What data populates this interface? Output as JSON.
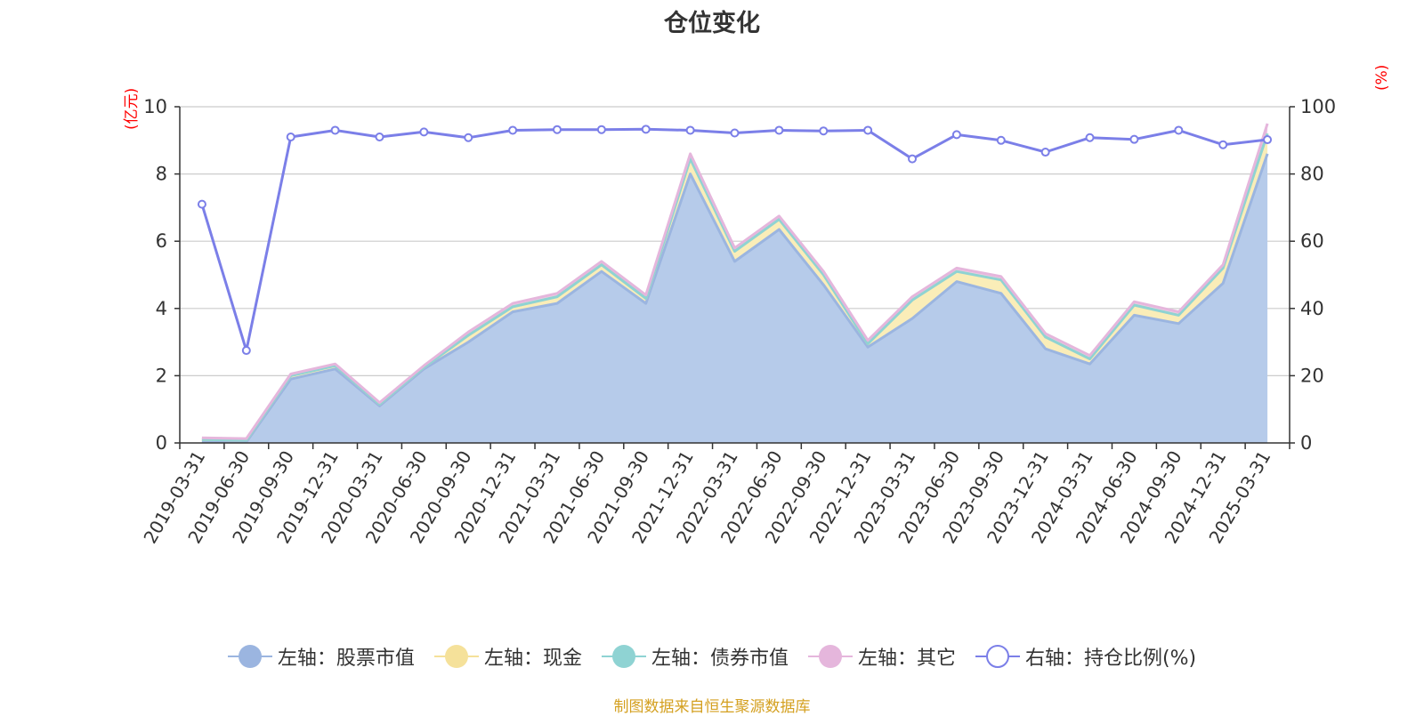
{
  "title": "仓位变化",
  "source": "制图数据来自恒生聚源数据库",
  "chart_data": {
    "type": "area",
    "title": "仓位变化",
    "categories": [
      "2019-03-31",
      "2019-06-30",
      "2019-09-30",
      "2019-12-31",
      "2020-03-31",
      "2020-06-30",
      "2020-09-30",
      "2020-12-31",
      "2021-03-31",
      "2021-06-30",
      "2021-09-30",
      "2021-12-31",
      "2022-03-31",
      "2022-06-30",
      "2022-09-30",
      "2022-12-31",
      "2023-03-31",
      "2023-06-30",
      "2023-09-30",
      "2023-12-31",
      "2024-03-31",
      "2024-06-30",
      "2024-09-30",
      "2024-12-31",
      "2025-03-31"
    ],
    "y_left": {
      "label": "(亿元)",
      "ylim": [
        0,
        10
      ],
      "ticks": [
        "0",
        "2",
        "4",
        "6",
        "8",
        "10"
      ]
    },
    "y_right": {
      "label": "(%)",
      "ylim": [
        0,
        100
      ],
      "ticks": [
        "0",
        "20",
        "40",
        "60",
        "80",
        "100"
      ]
    },
    "grid": true,
    "legend_position": "bottom",
    "series": [
      {
        "name": "左轴：股票市值",
        "axis": "left",
        "stacked": true,
        "color": "#9bb5e0",
        "fill": "#b6cbea",
        "values": [
          0.05,
          0.03,
          1.9,
          2.2,
          1.1,
          2.2,
          3.0,
          3.9,
          4.15,
          5.1,
          4.15,
          8.0,
          5.4,
          6.35,
          4.7,
          2.85,
          3.7,
          4.8,
          4.45,
          2.8,
          2.35,
          3.8,
          3.55,
          4.75,
          8.6
        ]
      },
      {
        "name": "左轴：现金",
        "axis": "left",
        "stacked": true,
        "color": "#f5e19a",
        "fill": "#faedb8",
        "values": [
          0.05,
          0.05,
          0.1,
          0.1,
          0.05,
          0.05,
          0.2,
          0.15,
          0.2,
          0.2,
          0.15,
          0.45,
          0.3,
          0.3,
          0.3,
          0.1,
          0.55,
          0.3,
          0.4,
          0.35,
          0.15,
          0.3,
          0.25,
          0.45,
          0.6
        ]
      },
      {
        "name": "左轴：债券市值",
        "axis": "left",
        "stacked": true,
        "color": "#8fd3d3",
        "fill": "#c2e6e6",
        "values": [
          0,
          0,
          0,
          0,
          0,
          0,
          0,
          0,
          0,
          0,
          0,
          0,
          0,
          0,
          0,
          0,
          0,
          0,
          0,
          0,
          0,
          0,
          0,
          0,
          0
        ]
      },
      {
        "name": "左轴：其它",
        "axis": "left",
        "stacked": true,
        "color": "#e5b6dc",
        "fill": "#efcbe8",
        "values": [
          0.05,
          0.05,
          0.05,
          0.05,
          0.05,
          0.05,
          0.1,
          0.1,
          0.1,
          0.1,
          0.1,
          0.15,
          0.1,
          0.1,
          0.1,
          0.1,
          0.1,
          0.1,
          0.1,
          0.1,
          0.1,
          0.1,
          0.1,
          0.1,
          0.3
        ]
      },
      {
        "name": "右轴：持仓比例(%)",
        "axis": "right",
        "color": "#7b7fe8",
        "marker": "circle",
        "values": [
          71,
          27.5,
          91,
          93,
          91,
          92.5,
          90.8,
          93,
          93.2,
          93.2,
          93.3,
          93,
          92.2,
          93,
          92.8,
          93,
          84.5,
          91.7,
          90,
          86.5,
          90.8,
          90.3,
          93,
          88.7,
          90.2
        ]
      }
    ]
  }
}
